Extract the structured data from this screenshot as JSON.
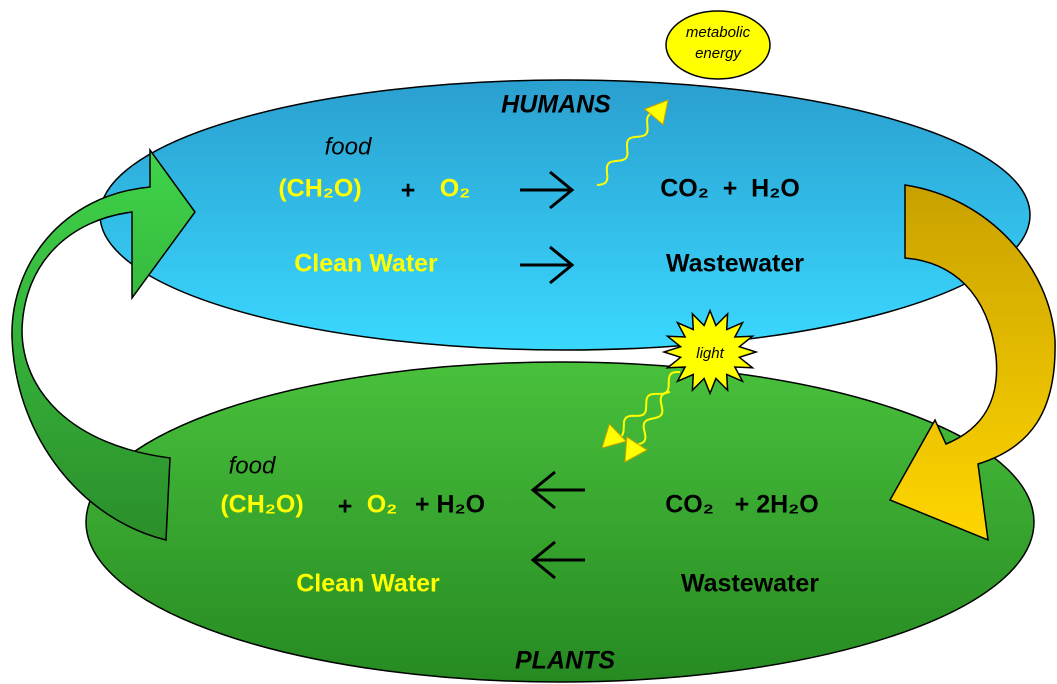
{
  "humans": {
    "label": "HUMANS",
    "food": "food",
    "reactant": "(CH₂O)",
    "plus": "+",
    "oxygen": "O₂",
    "products": "CO₂  +  H₂O",
    "clean_water": "Clean Water",
    "wastewater": "Wastewater"
  },
  "plants": {
    "label": "PLANTS",
    "food": "food",
    "product": "(CH₂O)",
    "plus": "+",
    "oxygen": "O₂",
    "water": "+ H₂O",
    "reactants": "CO₂   + 2H₂O",
    "clean_water": "Clean Water",
    "wastewater": "Wastewater"
  },
  "metabolic_energy": [
    "metabolic",
    "energy"
  ],
  "light": "light"
}
